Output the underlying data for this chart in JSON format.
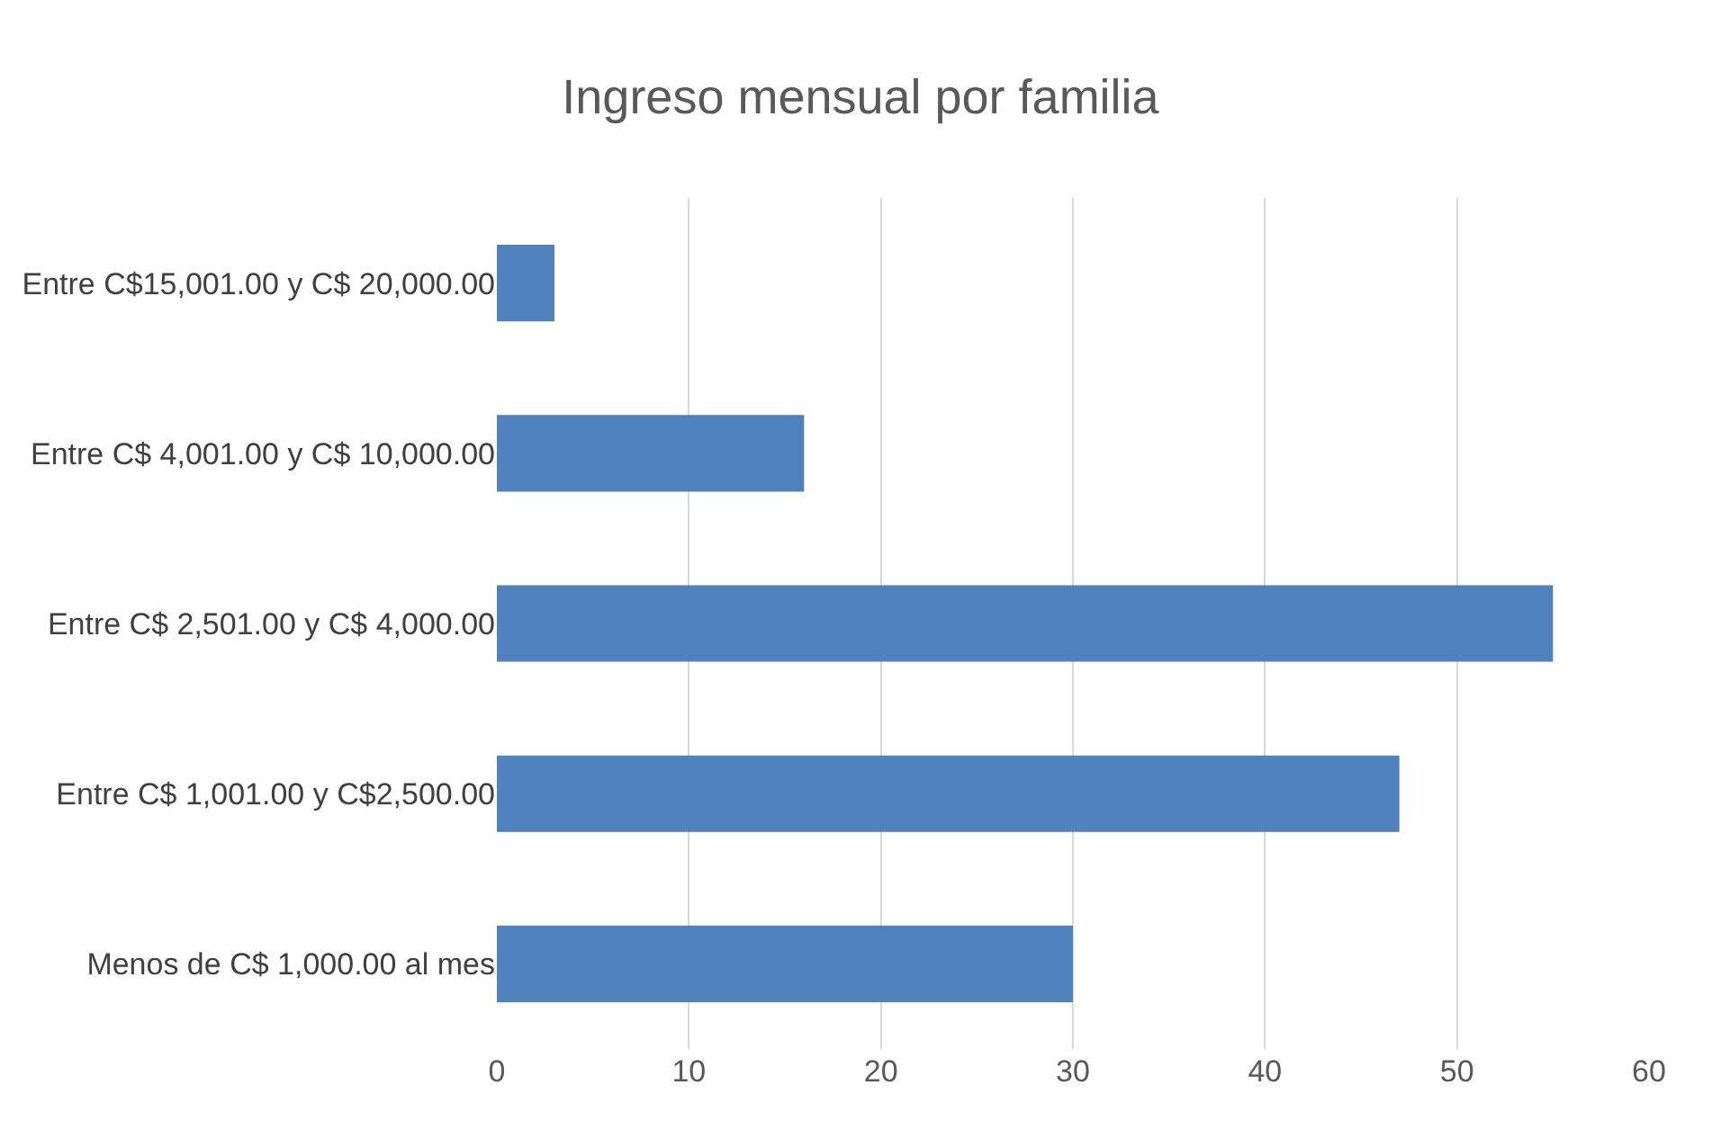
{
  "chart_data": {
    "type": "bar",
    "orientation": "horizontal",
    "title": "Ingreso mensual por familia",
    "categories": [
      "Entre C$15,001.00 y C$ 20,000.00",
      "Entre C$ 4,001.00 y C$ 10,000.00",
      "Entre C$ 2,501.00 y C$ 4,000.00",
      "Entre C$ 1,001.00 y C$2,500.00",
      "Menos de C$ 1,000.00 al mes"
    ],
    "values": [
      3,
      16,
      55,
      47,
      30
    ],
    "color": "#4f81bd",
    "xlim": [
      0,
      60
    ],
    "xticks": [
      0,
      10,
      20,
      30,
      40,
      50,
      60
    ],
    "grid": "x",
    "legend": false
  }
}
